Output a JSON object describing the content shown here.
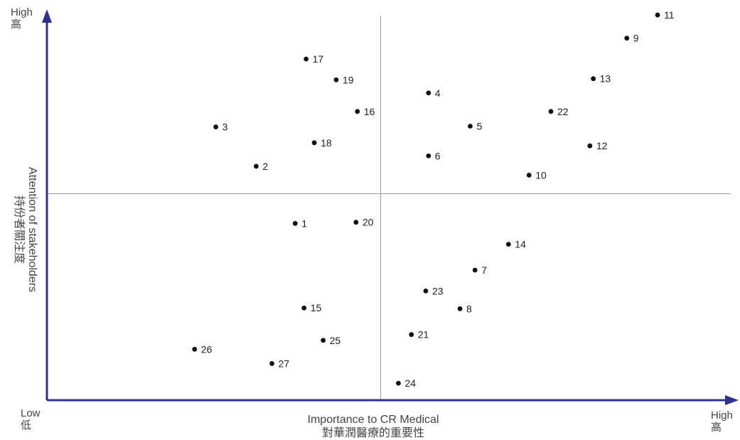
{
  "colors": {
    "axis": "#2e3192",
    "quadrant_line": "#999999",
    "point": "#111111",
    "text": "#444444"
  },
  "chart_data": {
    "type": "scatter",
    "title": "",
    "xlabel": "Importance to CR Medical",
    "xlabel_zh": "對華潤醫療的重要性",
    "ylabel": "Attention of stakeholders",
    "ylabel_zh": "持份者關注度",
    "x_low": "Low",
    "x_low_zh": "低",
    "x_high": "High",
    "x_high_zh": "高",
    "y_high": "High",
    "y_high_zh": "高",
    "xlim": [
      0,
      100
    ],
    "ylim": [
      0,
      100
    ],
    "quadrant_divider": {
      "x": 48.8,
      "y": 53.5
    },
    "grid": false,
    "points": [
      {
        "label": "1",
        "x": 36.3,
        "y": 45.8
      },
      {
        "label": "2",
        "x": 30.6,
        "y": 60.6
      },
      {
        "label": "3",
        "x": 24.7,
        "y": 70.8
      },
      {
        "label": "4",
        "x": 55.8,
        "y": 79.6
      },
      {
        "label": "5",
        "x": 61.9,
        "y": 71.0
      },
      {
        "label": "6",
        "x": 55.8,
        "y": 63.3
      },
      {
        "label": "7",
        "x": 62.6,
        "y": 33.7
      },
      {
        "label": "8",
        "x": 60.4,
        "y": 23.7
      },
      {
        "label": "9",
        "x": 84.8,
        "y": 93.8
      },
      {
        "label": "10",
        "x": 70.5,
        "y": 58.3
      },
      {
        "label": "11",
        "x": 89.3,
        "y": 99.8
      },
      {
        "label": "12",
        "x": 79.4,
        "y": 65.9
      },
      {
        "label": "13",
        "x": 79.9,
        "y": 83.3
      },
      {
        "label": "14",
        "x": 67.5,
        "y": 40.4
      },
      {
        "label": "15",
        "x": 37.6,
        "y": 23.9
      },
      {
        "label": "16",
        "x": 45.4,
        "y": 74.8
      },
      {
        "label": "17",
        "x": 37.9,
        "y": 88.4
      },
      {
        "label": "18",
        "x": 39.1,
        "y": 66.7
      },
      {
        "label": "19",
        "x": 42.3,
        "y": 83.0
      },
      {
        "label": "20",
        "x": 45.2,
        "y": 46.1
      },
      {
        "label": "21",
        "x": 53.3,
        "y": 17.0
      },
      {
        "label": "22",
        "x": 73.7,
        "y": 74.8
      },
      {
        "label": "23",
        "x": 55.4,
        "y": 28.3
      },
      {
        "label": "24",
        "x": 51.4,
        "y": 4.4
      },
      {
        "label": "25",
        "x": 40.4,
        "y": 15.5
      },
      {
        "label": "26",
        "x": 21.6,
        "y": 13.2
      },
      {
        "label": "27",
        "x": 32.9,
        "y": 9.5
      }
    ]
  }
}
